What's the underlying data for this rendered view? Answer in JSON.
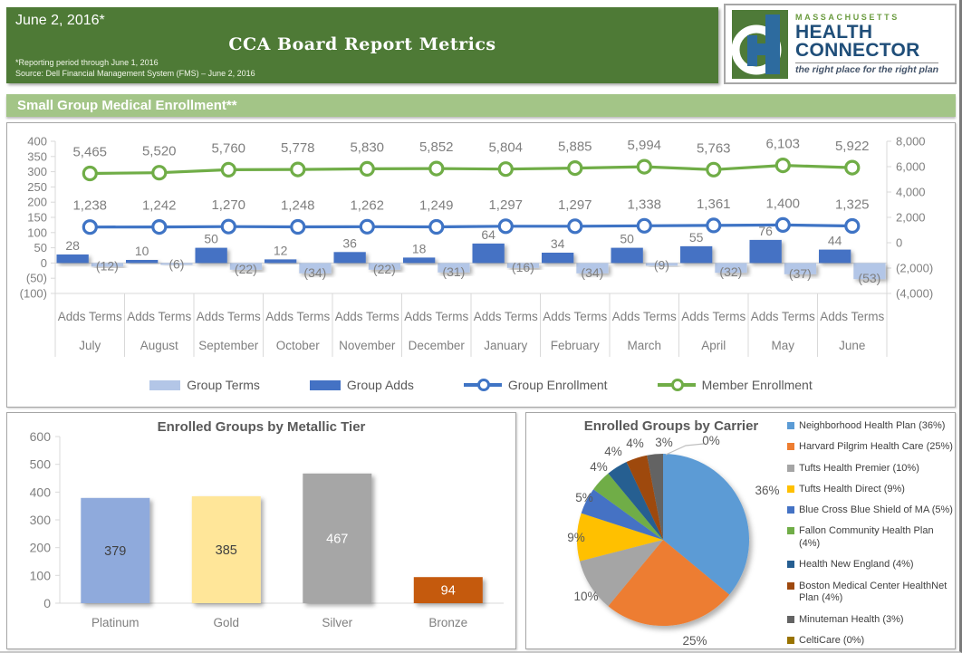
{
  "header": {
    "date": "June 2, 2016*",
    "title": "CCA Board Report Metrics",
    "note1": "*Reporting period through June 1, 2016",
    "note2": "Source: Dell Financial Management System (FMS) – June 2, 2016",
    "logo": {
      "region": "MASSACHUSETTS",
      "name1": "HEALTH",
      "name2": "CONNECTOR",
      "tagline": "the right place for the right plan"
    }
  },
  "section_title": "Small Group Medical Enrollment**",
  "theme": {
    "header_green": "#4e7a36",
    "section_green": "#a3c587",
    "axis_text_gray": "#808080",
    "label_gray": "#7f7f7f"
  },
  "chart_data": [
    {
      "type": "combo",
      "title": "Small Group Medical Enrollment",
      "categories": [
        "July",
        "August",
        "September",
        "October",
        "November",
        "December",
        "January",
        "February",
        "March",
        "April",
        "May",
        "June"
      ],
      "category_sublabel": "Adds Terms",
      "left_axis": {
        "min": -100,
        "max": 400,
        "step": 50,
        "tick_labels": [
          "400",
          "350",
          "300",
          "250",
          "200",
          "150",
          "100",
          "50",
          "0",
          "(50)",
          "(100)"
        ]
      },
      "right_axis": {
        "min": -4000,
        "max": 8000,
        "step": 2000,
        "tick_labels": [
          "8,000",
          "6,000",
          "4,000",
          "2,000",
          "0",
          "(2,000)",
          "(4,000)"
        ]
      },
      "series": [
        {
          "name": "Group Terms",
          "kind": "bar",
          "axis": "left",
          "column": 1,
          "color": "#b3c6e7",
          "values": [
            -12,
            -6,
            -22,
            -34,
            -22,
            -31,
            -16,
            -34,
            -9,
            -32,
            -37,
            -53
          ],
          "labels": [
            "(12)",
            "(6)",
            "(22)",
            "(34)",
            "(22)",
            "(31)",
            "(16)",
            "(34)",
            "(9)",
            "(32)",
            "(37)",
            "(53)"
          ]
        },
        {
          "name": "Group Adds",
          "kind": "bar",
          "axis": "left",
          "column": 0,
          "color": "#4472c4",
          "values": [
            28,
            10,
            50,
            12,
            36,
            18,
            64,
            34,
            50,
            55,
            76,
            44
          ],
          "labels": [
            "28",
            "10",
            "50",
            "12",
            "36",
            "18",
            "64",
            "34",
            "50",
            "55",
            "76",
            "44"
          ]
        },
        {
          "name": "Group Enrollment",
          "kind": "line",
          "axis": "right",
          "color": "#3f74c5",
          "values": [
            1238,
            1242,
            1270,
            1248,
            1262,
            1249,
            1297,
            1297,
            1338,
            1361,
            1400,
            1325
          ],
          "labels": [
            "1,238",
            "1,242",
            "1,270",
            "1,248",
            "1,262",
            "1,249",
            "1,297",
            "1,297",
            "1,338",
            "1,361",
            "1,400",
            "1,325"
          ]
        },
        {
          "name": "Member Enrollment",
          "kind": "line",
          "axis": "right",
          "color": "#70ad47",
          "values": [
            5465,
            5520,
            5760,
            5778,
            5830,
            5852,
            5804,
            5885,
            5994,
            5763,
            6103,
            5922
          ],
          "labels": [
            "5,465",
            "5,520",
            "5,760",
            "5,778",
            "5,830",
            "5,852",
            "5,804",
            "5,885",
            "5,994",
            "5,763",
            "6,103",
            "5,922"
          ]
        }
      ]
    },
    {
      "type": "bar",
      "title": "Enrolled Groups by Metallic Tier",
      "categories": [
        "Platinum",
        "Gold",
        "Silver",
        "Bronze"
      ],
      "values": [
        379,
        385,
        467,
        94
      ],
      "value_labels": [
        "379",
        "385",
        "467",
        "94"
      ],
      "bar_colors": [
        "#8faadc",
        "#ffe699",
        "#a6a6a6",
        "#c55a11"
      ],
      "label_colors": [
        "#404040",
        "#404040",
        "#ffffff",
        "#ffffff"
      ],
      "ylim": [
        0,
        600
      ],
      "ytick_labels": [
        "600",
        "500",
        "400",
        "300",
        "200",
        "100",
        "0"
      ]
    },
    {
      "type": "pie",
      "title": "Enrolled Groups by Carrier",
      "slices": [
        {
          "label": "Neighborhood Health Plan",
          "pct": 36,
          "pct_label": "36%",
          "color": "#5b9bd5",
          "legend": "Neighborhood Health Plan (36%)"
        },
        {
          "label": "Harvard Pilgrim Health Care",
          "pct": 25,
          "pct_label": "25%",
          "color": "#ed7d31",
          "legend": "Harvard Pilgrim Health Care (25%)"
        },
        {
          "label": "Tufts Health Premier",
          "pct": 10,
          "pct_label": "10%",
          "color": "#a5a5a5",
          "legend": "Tufts Health Premier (10%)"
        },
        {
          "label": "Tufts Health Direct",
          "pct": 9,
          "pct_label": "9%",
          "color": "#ffc000",
          "legend": "Tufts Health Direct (9%)"
        },
        {
          "label": "Blue Cross Blue Shield of MA",
          "pct": 5,
          "pct_label": "5%",
          "color": "#4472c4",
          "legend": "Blue Cross Blue Shield of MA (5%)"
        },
        {
          "label": "Fallon Community Health Plan",
          "pct": 4,
          "pct_label": "4%",
          "color": "#70ad47",
          "legend": "Fallon Community Health Plan (4%)"
        },
        {
          "label": "Health New England",
          "pct": 4,
          "pct_label": "4%",
          "color": "#255e91",
          "legend": "Health New England (4%)"
        },
        {
          "label": "Boston Medical Center HealthNet Plan",
          "pct": 4,
          "pct_label": "4%",
          "color": "#9e480e",
          "legend": "Boston Medical Center HealthNet Plan (4%)"
        },
        {
          "label": "Minuteman Health",
          "pct": 3,
          "pct_label": "3%",
          "color": "#636363",
          "legend": "Minuteman Health (3%)"
        },
        {
          "label": "CeltiCare",
          "pct": 0,
          "pct_label": "0%",
          "color": "#997300",
          "legend": "CeltiCare (0%)"
        }
      ]
    }
  ]
}
